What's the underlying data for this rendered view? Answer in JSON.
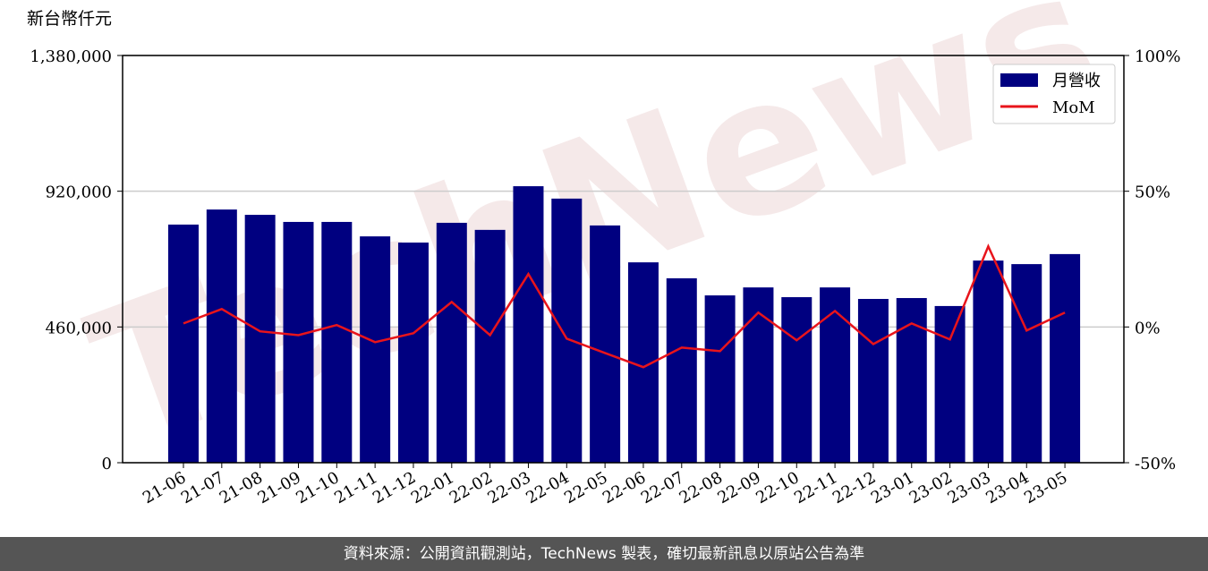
{
  "chart_data": {
    "type": "bar_line",
    "y_label": "新台幣仟元",
    "watermark": "TechNews",
    "footer": "資料來源：公開資訊觀測站，TechNews 製表，確切最新訊息以原站公告為準",
    "categories": [
      "21-06",
      "21-07",
      "21-08",
      "21-09",
      "21-10",
      "21-11",
      "21-12",
      "22-01",
      "22-02",
      "22-03",
      "22-04",
      "22-05",
      "22-06",
      "22-07",
      "22-08",
      "22-09",
      "22-10",
      "22-11",
      "22-12",
      "23-01",
      "23-02",
      "23-03",
      "23-04",
      "23-05"
    ],
    "series": [
      {
        "name": "月營收",
        "type": "bar",
        "color": "#000080",
        "values": [
          807000,
          858000,
          840000,
          816000,
          816000,
          767000,
          746000,
          813000,
          789000,
          937000,
          895000,
          804000,
          679000,
          625000,
          567000,
          594000,
          561000,
          594000,
          555000,
          558000,
          531000,
          685000,
          673000,
          707000
        ]
      },
      {
        "name": "MoM",
        "type": "line",
        "axis": "y2",
        "color": "#e8141b",
        "values": [
          1.3,
          6.6,
          -1.6,
          -3.0,
          0.7,
          -5.6,
          -2.3,
          9.2,
          -3.0,
          19.5,
          -4.3,
          -9.6,
          -14.8,
          -7.6,
          -8.9,
          5.3,
          -4.9,
          5.9,
          -6.3,
          1.3,
          -4.6,
          29.7,
          -1.3,
          5.3
        ]
      }
    ],
    "ylim": [
      0,
      1380000
    ],
    "yticks": [
      {
        "value": 0,
        "label": "0"
      },
      {
        "value": 460000,
        "label": "460,000"
      },
      {
        "value": 920000,
        "label": "920,000"
      },
      {
        "value": 1380000,
        "label": "1,380,000"
      }
    ],
    "y2lim": [
      -50,
      100
    ],
    "y2ticks": [
      {
        "value": -50,
        "label": "-50%"
      },
      {
        "value": 0,
        "label": "0%"
      },
      {
        "value": 50,
        "label": "50%"
      },
      {
        "value": 100,
        "label": "100%"
      }
    ],
    "grid": true,
    "legend": "upper right"
  }
}
